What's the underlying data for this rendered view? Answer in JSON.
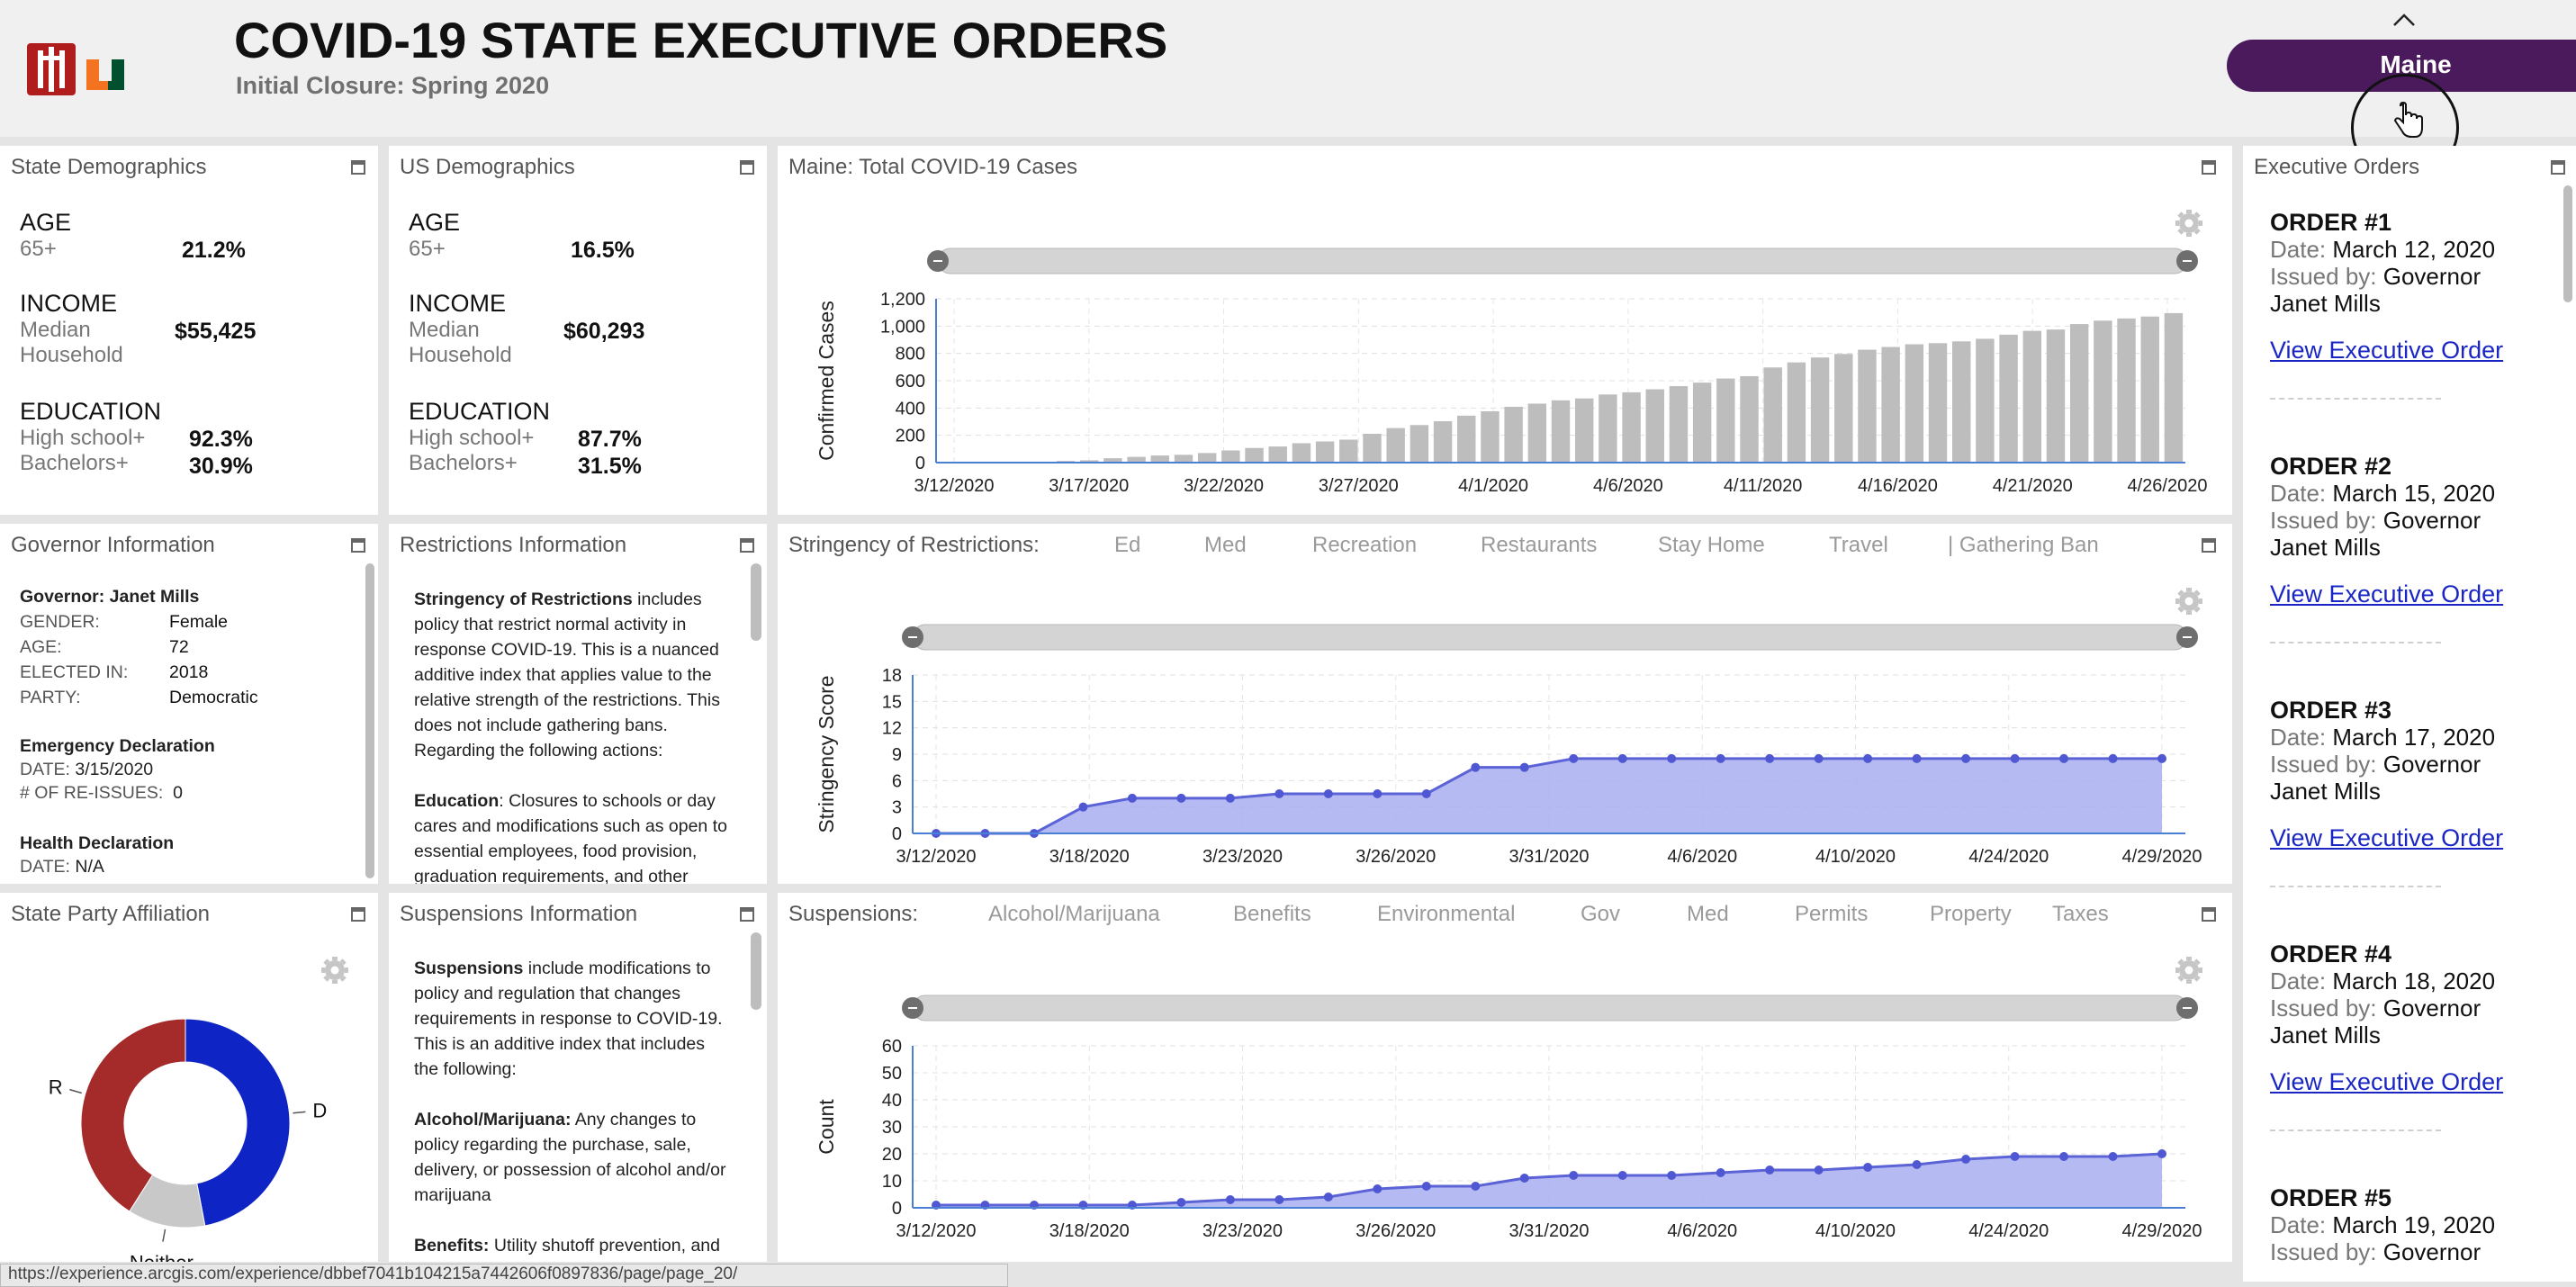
{
  "header": {
    "title": "COVID-19 STATE EXECUTIVE ORDERS",
    "subtitle": "Initial Closure: Spring 2020",
    "state_button": "Maine"
  },
  "state_demographics": {
    "title": "State Demographics",
    "age_label": "AGE",
    "age_sub": "65+",
    "age_value": "21.2%",
    "income_label": "INCOME",
    "income_sub1": "Median",
    "income_sub2": "Household",
    "income_value": "$55,425",
    "education_label": "EDUCATION",
    "hs_label": "High school+",
    "hs_value": "92.3%",
    "ba_label": "Bachelors+",
    "ba_value": "30.9%"
  },
  "us_demographics": {
    "title": "US Demographics",
    "age_label": "AGE",
    "age_sub": "65+",
    "age_value": "16.5%",
    "income_label": "INCOME",
    "income_sub1": "Median",
    "income_sub2": "Household",
    "income_value": "$60,293",
    "education_label": "EDUCATION",
    "hs_label": "High school+",
    "hs_value": "87.7%",
    "ba_label": "Bachelors+",
    "ba_value": "31.5%"
  },
  "governor": {
    "title": "Governor Information",
    "name": "Governor: Janet Mills",
    "rows": [
      {
        "label": "GENDER:",
        "value": "Female"
      },
      {
        "label": "AGE:",
        "value": "72"
      },
      {
        "label": "ELECTED IN:",
        "value": "2018"
      },
      {
        "label": "PARTY:",
        "value": "Democratic"
      }
    ],
    "emergency_heading": "Emergency Declaration",
    "emergency_date_label": "DATE:",
    "emergency_date": "3/15/2020",
    "reissues_label": "# OF RE-ISSUES:",
    "reissues": "0",
    "health_heading": "Health Declaration",
    "health_date_label": "DATE:",
    "health_date": "N/A"
  },
  "restrictions": {
    "title": "Restrictions Information",
    "bold": "Stringency of Restrictions",
    "text": " includes policy that restrict normal activity in response COVID-19. This is a nuanced additive index that applies value to the relative strength of the restrictions. This does not include gathering bans. Regarding the following actions:",
    "edu_bold": "Education",
    "edu_text": ": Closures to schools or day cares and modifications such as open to essential employees, food provision, graduation requirements, and other"
  },
  "suspensions_info": {
    "title": "Suspensions Information",
    "bold": "Suspensions",
    "text": " include modifications to policy and regulation that changes requirements in response to COVID-19. This is an additive index that includes the following:",
    "am_bold": "Alcohol/Marijuana:",
    "am_text": " Any changes to policy regarding the purchase, sale, delivery, or possession of alcohol and/or marijuana",
    "ben_bold": "Benefits:",
    "ben_text": " Utility shutoff prevention, and"
  },
  "party": {
    "title": "State Party Affiliation"
  },
  "cases_panel": {
    "title": "Maine: Total COVID-19 Cases"
  },
  "stringency_panel": {
    "title": "Stringency of Restrictions:",
    "tabs": [
      "Ed",
      "Med",
      "Recreation",
      "Restaurants",
      "Stay Home",
      "Travel",
      "| Gathering Ban"
    ]
  },
  "suspensions_panel": {
    "title": "Suspensions:",
    "tabs": [
      "Alcohol/Marijuana",
      "Benefits",
      "Environmental",
      "Gov",
      "Med",
      "Permits",
      "Property",
      "Taxes"
    ]
  },
  "executive_orders": {
    "title": "Executive Orders",
    "date_label": "Date:",
    "issued_label": "Issued by:",
    "issued_value1": "Governor",
    "issued_value2": "Janet Mills",
    "link_text": "View Executive Order",
    "orders": [
      {
        "number": "ORDER #1",
        "date": "March 12, 2020"
      },
      {
        "number": "ORDER #2",
        "date": "March 15, 2020"
      },
      {
        "number": "ORDER #3",
        "date": "March 17, 2020"
      },
      {
        "number": "ORDER #4",
        "date": "March 18, 2020"
      },
      {
        "number": "ORDER #5",
        "date": "March 19, 2020"
      }
    ]
  },
  "status_bar": {
    "url": "https://experience.arcgis.com/experience/dbbef7041b104215a7442606f0897836/page/page_20/"
  },
  "chart_data": [
    {
      "type": "bar",
      "ylabel": "Confirmed Cases",
      "ylim": [
        0,
        1200
      ],
      "yticks": [
        "0",
        "200",
        "400",
        "600",
        "800",
        "1,000",
        "1,200"
      ],
      "xticks": [
        "3/12/2020",
        "3/17/2020",
        "3/22/2020",
        "3/27/2020",
        "4/1/2020",
        "4/6/2020",
        "4/11/2020",
        "4/16/2020",
        "4/21/2020",
        "4/26/2020"
      ],
      "values": [
        0,
        0,
        0,
        0,
        1,
        12,
        17,
        32,
        42,
        52,
        57,
        70,
        89,
        107,
        118,
        142,
        155,
        168,
        211,
        253,
        275,
        303,
        344,
        376,
        409,
        432,
        456,
        470,
        499,
        515,
        537,
        560,
        586,
        616,
        633,
        697,
        734,
        770,
        796,
        827,
        847,
        867,
        875,
        888,
        907,
        937,
        965,
        975,
        1015,
        1040,
        1056,
        1070,
        1095
      ]
    },
    {
      "type": "area",
      "ylabel": "Stringency Score",
      "ylim": [
        0,
        18
      ],
      "yticks": [
        "0",
        "3",
        "6",
        "9",
        "12",
        "15",
        "18"
      ],
      "xticks": [
        "3/12/2020",
        "3/18/2020",
        "3/23/2020",
        "3/26/2020",
        "3/31/2020",
        "4/6/2020",
        "4/10/2020",
        "4/24/2020",
        "4/29/2020"
      ],
      "values": [
        0,
        0,
        0,
        3,
        4,
        4,
        4,
        4.5,
        4.5,
        4.5,
        4.5,
        7.5,
        7.5,
        8.5,
        8.5,
        8.5,
        8.5,
        8.5,
        8.5,
        8.5,
        8.5,
        8.5,
        8.5,
        8.5,
        8.5,
        8.5
      ]
    },
    {
      "type": "area",
      "ylabel": "Count",
      "ylim": [
        0,
        60
      ],
      "yticks": [
        "0",
        "10",
        "20",
        "30",
        "40",
        "50",
        "60"
      ],
      "xticks": [
        "3/12/2020",
        "3/18/2020",
        "3/23/2020",
        "3/26/2020",
        "3/31/2020",
        "4/6/2020",
        "4/10/2020",
        "4/24/2020",
        "4/29/2020"
      ],
      "values": [
        1,
        1,
        1,
        1,
        1,
        2,
        3,
        3,
        4,
        7,
        8,
        8,
        11,
        12,
        12,
        12,
        13,
        14,
        14,
        15,
        16,
        18,
        19,
        19,
        19,
        20
      ]
    },
    {
      "type": "pie",
      "donut": true,
      "labels": [
        "D",
        "Neither",
        "R"
      ],
      "values": [
        47,
        12,
        41
      ],
      "colors": [
        "#0f24c4",
        "#c8c8c8",
        "#a52a2a"
      ]
    }
  ]
}
